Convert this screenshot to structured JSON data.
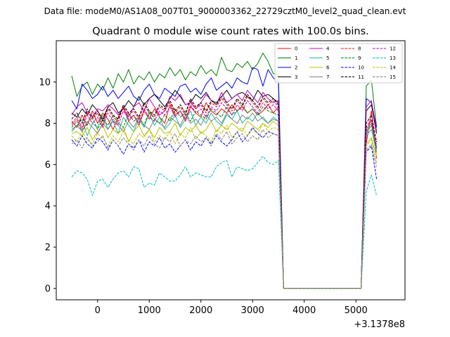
{
  "chart_data": {
    "type": "line",
    "suptitle": "Data file: modeM0/AS1A08_007T01_9000003362_22729cztM0_level2_quad_clean.evt",
    "title": "Quadrant 0 module wise count rates with 100.0s bins.",
    "xlabel": "",
    "ylabel": "",
    "x_offset_label": "+3.1378e8",
    "xlim": [
      -800,
      5950
    ],
    "ylim": [
      -0.55,
      12.0
    ],
    "x_ticks": [
      0,
      1000,
      2000,
      3000,
      4000,
      5000
    ],
    "y_ticks": [
      0,
      2,
      4,
      6,
      8,
      10
    ],
    "legend_position": "top-right",
    "x_start": -500,
    "x_step": 100,
    "series": [
      {
        "name": "0",
        "color": "#ff0000",
        "dash": "solid",
        "values": [
          8.1,
          7.8,
          8.4,
          7.9,
          8.6,
          8.0,
          8.5,
          8.2,
          7.7,
          8.3,
          8.8,
          8.1,
          8.4,
          7.9,
          8.6,
          8.2,
          8.7,
          8.3,
          8.0,
          8.9,
          8.4,
          8.6,
          8.1,
          8.8,
          8.5,
          8.3,
          9.0,
          8.6,
          8.4,
          8.7,
          8.5,
          8.9,
          8.6,
          8.8,
          8.5,
          8.7,
          8.4,
          8.6,
          8.9,
          8.5,
          8.8,
          0.0,
          0.0,
          0.0,
          0.0,
          0.0,
          0.0,
          0.0,
          0.0,
          0.0,
          0.0,
          0.0,
          0.0,
          0.0,
          0.0,
          0.0,
          0.0,
          7.0,
          8.6,
          6.3
        ]
      },
      {
        "name": "1",
        "color": "#008000",
        "dash": "solid",
        "values": [
          10.3,
          9.3,
          9.8,
          10.0,
          9.4,
          9.9,
          9.6,
          10.2,
          9.7,
          10.4,
          10.0,
          10.6,
          9.9,
          10.3,
          10.1,
          10.5,
          10.0,
          10.4,
          10.2,
          10.7,
          10.3,
          10.6,
          10.1,
          10.5,
          10.3,
          10.8,
          10.4,
          10.6,
          10.3,
          11.2,
          10.6,
          10.5,
          10.9,
          10.7,
          11.0,
          10.6,
          10.9,
          11.4,
          11.0,
          10.4,
          10.4,
          0.0,
          0.0,
          0.0,
          0.0,
          0.0,
          0.0,
          0.0,
          0.0,
          0.0,
          0.0,
          0.0,
          0.0,
          0.0,
          0.0,
          0.0,
          0.0,
          9.8,
          10.1,
          7.8
        ]
      },
      {
        "name": "2",
        "color": "#0000ff",
        "dash": "solid",
        "values": [
          9.1,
          8.7,
          9.9,
          9.6,
          9.2,
          9.4,
          9.8,
          9.3,
          9.6,
          9.2,
          9.5,
          9.8,
          9.3,
          9.1,
          9.6,
          9.9,
          9.4,
          9.2,
          9.7,
          9.5,
          9.3,
          9.8,
          9.9,
          9.5,
          9.7,
          9.4,
          9.9,
          10.2,
          9.6,
          9.8,
          10.0,
          9.7,
          10.2,
          10.0,
          9.9,
          10.7,
          10.6,
          9.8,
          10.6,
          10.2,
          10.0,
          0.0,
          0.0,
          0.0,
          0.0,
          0.0,
          0.0,
          0.0,
          0.0,
          0.0,
          0.0,
          0.0,
          0.0,
          0.0,
          0.0,
          0.0,
          0.0,
          9.2,
          9.0,
          7.8
        ]
      },
      {
        "name": "3",
        "color": "#000000",
        "dash": "solid",
        "values": [
          8.5,
          8.3,
          8.7,
          8.4,
          8.9,
          8.6,
          8.2,
          8.8,
          9.0,
          8.5,
          8.7,
          9.1,
          8.8,
          9.3,
          8.9,
          9.2,
          9.4,
          9.1,
          8.8,
          9.2,
          9.6,
          9.3,
          8.9,
          9.0,
          9.4,
          9.2,
          9.5,
          9.1,
          9.0,
          9.3,
          9.6,
          9.2,
          9.4,
          9.5,
          9.3,
          9.1,
          9.6,
          9.3,
          9.4,
          9.2,
          9.0,
          0.0,
          0.0,
          0.0,
          0.0,
          0.0,
          0.0,
          0.0,
          0.0,
          0.0,
          0.0,
          0.0,
          0.0,
          0.0,
          0.0,
          0.0,
          0.0,
          8.6,
          8.9,
          7.5
        ]
      },
      {
        "name": "4",
        "color": "#bf00bf",
        "dash": "solid",
        "values": [
          8.4,
          8.8,
          9.0,
          8.5,
          8.3,
          8.7,
          8.6,
          8.9,
          8.7,
          8.4,
          8.7,
          8.3,
          8.8,
          9.0,
          8.6,
          9.2,
          8.8,
          8.4,
          8.6,
          9.3,
          9.1,
          9.4,
          8.9,
          9.0,
          8.7,
          9.0,
          9.4,
          9.1,
          8.9,
          9.5,
          9.0,
          9.2,
          9.4,
          9.1,
          9.6,
          9.3,
          9.0,
          9.5,
          9.2,
          9.0,
          9.1,
          0.0,
          0.0,
          0.0,
          0.0,
          0.0,
          0.0,
          0.0,
          0.0,
          0.0,
          0.0,
          0.0,
          0.0,
          0.0,
          0.0,
          0.0,
          0.0,
          8.8,
          9.1,
          7.6
        ]
      },
      {
        "name": "5",
        "color": "#1abc9c",
        "dash": "solid",
        "values": [
          7.6,
          7.9,
          8.2,
          7.4,
          8.0,
          7.8,
          8.4,
          7.7,
          8.1,
          7.5,
          8.3,
          7.9,
          7.6,
          8.2,
          7.8,
          8.5,
          7.9,
          8.3,
          7.7,
          8.0,
          8.4,
          7.8,
          8.2,
          8.6,
          7.9,
          8.3,
          8.0,
          8.5,
          8.1,
          7.9,
          8.4,
          8.2,
          8.6,
          8.0,
          8.3,
          8.1,
          8.5,
          8.2,
          8.0,
          8.3,
          8.1,
          0.0,
          0.0,
          0.0,
          0.0,
          0.0,
          0.0,
          0.0,
          0.0,
          0.0,
          0.0,
          0.0,
          0.0,
          0.0,
          0.0,
          0.0,
          0.0,
          7.4,
          7.7,
          6.6
        ]
      },
      {
        "name": "6",
        "color": "#bfbf00",
        "dash": "solid",
        "values": [
          7.5,
          7.6,
          7.4,
          7.8,
          7.2,
          7.6,
          7.9,
          7.3,
          7.7,
          7.5,
          7.8,
          7.1,
          7.6,
          7.9,
          7.4,
          7.7,
          7.3,
          7.8,
          7.5,
          7.6,
          8.0,
          7.4,
          7.8,
          7.6,
          7.9,
          7.5,
          7.7,
          8.1,
          7.6,
          7.9,
          7.7,
          8.0,
          7.8,
          7.6,
          8.1,
          7.9,
          7.7,
          8.0,
          7.8,
          8.1,
          7.9,
          0.0,
          0.0,
          0.0,
          0.0,
          0.0,
          0.0,
          0.0,
          0.0,
          0.0,
          0.0,
          0.0,
          0.0,
          0.0,
          0.0,
          0.0,
          0.0,
          7.0,
          7.3,
          6.4
        ]
      },
      {
        "name": "7",
        "color": "#808080",
        "dash": "solid",
        "values": [
          7.7,
          7.9,
          7.6,
          8.1,
          7.8,
          7.5,
          8.0,
          7.7,
          8.2,
          7.9,
          7.6,
          8.1,
          7.8,
          8.3,
          7.9,
          7.7,
          8.2,
          8.0,
          7.8,
          8.3,
          8.1,
          7.9,
          8.4,
          8.0,
          8.2,
          7.9,
          8.4,
          8.1,
          8.3,
          8.0,
          8.5,
          8.2,
          8.0,
          8.4,
          8.2,
          8.5,
          8.1,
          8.3,
          8.0,
          8.2,
          8.1,
          0.0,
          0.0,
          0.0,
          0.0,
          0.0,
          0.0,
          0.0,
          0.0,
          0.0,
          0.0,
          0.0,
          0.0,
          0.0,
          0.0,
          0.0,
          0.0,
          7.5,
          7.9,
          6.8
        ]
      },
      {
        "name": "8",
        "color": "#ff0000",
        "dash": "dashed",
        "values": [
          8.0,
          8.3,
          7.8,
          8.6,
          8.2,
          8.5,
          7.9,
          8.7,
          8.3,
          8.1,
          8.8,
          8.4,
          8.6,
          8.2,
          8.9,
          8.5,
          8.3,
          8.8,
          8.6,
          9.0,
          8.5,
          8.8,
          8.4,
          9.1,
          8.7,
          8.9,
          8.5,
          9.0,
          8.8,
          9.2,
          8.9,
          8.6,
          9.1,
          8.8,
          9.3,
          9.0,
          8.7,
          9.2,
          8.9,
          9.1,
          8.8,
          0.0,
          0.0,
          0.0,
          0.0,
          0.0,
          0.0,
          0.0,
          0.0,
          0.0,
          0.0,
          0.0,
          0.0,
          0.0,
          0.0,
          0.0,
          0.0,
          7.8,
          8.2,
          6.9
        ]
      },
      {
        "name": "9",
        "color": "#008000",
        "dash": "dashed",
        "values": [
          7.8,
          8.1,
          7.6,
          8.0,
          8.3,
          7.7,
          8.2,
          7.9,
          8.4,
          8.0,
          7.8,
          8.5,
          8.1,
          8.3,
          7.9,
          8.6,
          8.2,
          8.0,
          8.4,
          8.1,
          8.7,
          8.3,
          8.5,
          8.1,
          8.6,
          8.4,
          8.2,
          8.7,
          8.5,
          8.3,
          8.8,
          8.4,
          8.6,
          8.9,
          8.5,
          8.7,
          8.4,
          8.8,
          8.6,
          8.5,
          8.4,
          0.0,
          0.0,
          0.0,
          0.0,
          0.0,
          0.0,
          0.0,
          0.0,
          0.0,
          0.0,
          0.0,
          0.0,
          0.0,
          0.0,
          0.0,
          0.0,
          7.6,
          8.0,
          6.7
        ]
      },
      {
        "name": "10",
        "color": "#0000ff",
        "dash": "dashed",
        "values": [
          7.2,
          6.9,
          7.4,
          7.0,
          6.8,
          7.3,
          7.1,
          6.7,
          7.2,
          6.9,
          6.5,
          7.0,
          6.8,
          7.2,
          6.6,
          7.1,
          6.9,
          7.3,
          6.8,
          7.0,
          6.6,
          6.9,
          7.2,
          6.7,
          7.1,
          6.9,
          7.3,
          7.0,
          7.4,
          7.1,
          6.9,
          7.2,
          7.6,
          7.1,
          7.4,
          7.8,
          7.5,
          7.3,
          7.6,
          7.5,
          7.4,
          0.0,
          0.0,
          0.0,
          0.0,
          0.0,
          0.0,
          0.0,
          0.0,
          0.0,
          0.0,
          0.0,
          0.0,
          0.0,
          0.0,
          0.0,
          0.0,
          6.6,
          6.9,
          5.3
        ]
      },
      {
        "name": "11",
        "color": "#000000",
        "dash": "dashed",
        "values": [
          8.2,
          8.5,
          8.0,
          8.7,
          8.3,
          8.6,
          8.1,
          8.8,
          8.4,
          8.2,
          8.9,
          8.5,
          8.7,
          8.3,
          9.0,
          8.6,
          8.4,
          8.9,
          8.7,
          9.1,
          8.6,
          8.9,
          8.5,
          9.2,
          8.8,
          9.0,
          8.6,
          9.1,
          8.9,
          9.3,
          9.0,
          8.7,
          9.2,
          8.9,
          9.4,
          9.1,
          8.8,
          9.3,
          9.0,
          9.2,
          8.9,
          0.0,
          0.0,
          0.0,
          0.0,
          0.0,
          0.0,
          0.0,
          0.0,
          0.0,
          0.0,
          0.0,
          0.0,
          0.0,
          0.0,
          0.0,
          0.0,
          8.0,
          8.4,
          7.1
        ]
      },
      {
        "name": "12",
        "color": "#bf00bf",
        "dash": "dashed",
        "values": [
          7.9,
          8.2,
          7.7,
          8.4,
          8.0,
          8.3,
          7.8,
          8.5,
          8.1,
          7.9,
          8.6,
          8.2,
          8.4,
          8.0,
          8.7,
          8.3,
          8.1,
          8.6,
          8.4,
          8.8,
          8.3,
          8.6,
          8.2,
          8.9,
          8.5,
          8.7,
          8.3,
          8.8,
          8.6,
          9.0,
          8.7,
          8.4,
          8.9,
          8.6,
          9.1,
          8.8,
          8.5,
          9.0,
          8.7,
          8.9,
          8.6,
          0.0,
          0.0,
          0.0,
          0.0,
          0.0,
          0.0,
          0.0,
          0.0,
          0.0,
          0.0,
          0.0,
          0.0,
          0.0,
          0.0,
          0.0,
          0.0,
          7.7,
          8.1,
          6.8
        ]
      },
      {
        "name": "13",
        "color": "#00bfbf",
        "dash": "dashed",
        "values": [
          5.4,
          5.7,
          5.6,
          5.3,
          4.5,
          5.2,
          5.3,
          4.9,
          5.3,
          5.6,
          5.7,
          5.4,
          5.9,
          5.8,
          4.9,
          5.1,
          5.0,
          5.6,
          5.4,
          5.2,
          5.2,
          5.5,
          5.9,
          5.4,
          5.6,
          5.5,
          5.4,
          5.4,
          5.9,
          6.1,
          6.2,
          5.4,
          5.9,
          5.8,
          5.7,
          5.8,
          6.1,
          6.4,
          6.1,
          6.0,
          6.2,
          0.0,
          0.0,
          0.0,
          0.0,
          0.0,
          0.0,
          0.0,
          0.0,
          0.0,
          0.0,
          0.0,
          0.0,
          0.0,
          0.0,
          0.0,
          0.0,
          4.7,
          5.5,
          4.5
        ]
      },
      {
        "name": "14",
        "color": "#bfbf00",
        "dash": "dashed",
        "values": [
          7.4,
          7.1,
          7.6,
          7.2,
          7.0,
          7.5,
          7.3,
          6.9,
          7.4,
          7.1,
          7.6,
          7.2,
          7.0,
          7.5,
          7.3,
          7.7,
          7.1,
          7.4,
          7.2,
          7.6,
          7.0,
          7.5,
          7.3,
          7.8,
          7.2,
          7.6,
          7.4,
          7.1,
          7.7,
          7.5,
          7.9,
          7.3,
          7.6,
          7.8,
          7.4,
          7.7,
          7.5,
          8.0,
          7.6,
          7.8,
          7.7,
          0.0,
          0.0,
          0.0,
          0.0,
          0.0,
          0.0,
          0.0,
          0.0,
          0.0,
          0.0,
          0.0,
          0.0,
          0.0,
          0.0,
          0.0,
          0.0,
          6.9,
          7.2,
          6.1
        ]
      },
      {
        "name": "15",
        "color": "#808080",
        "dash": "dashed",
        "values": [
          7.0,
          7.2,
          6.8,
          7.3,
          6.9,
          7.1,
          7.4,
          6.8,
          7.2,
          6.9,
          7.3,
          7.0,
          6.7,
          7.2,
          6.9,
          7.4,
          7.0,
          6.8,
          7.3,
          7.1,
          7.5,
          6.9,
          7.2,
          7.0,
          7.4,
          7.1,
          7.3,
          6.9,
          7.5,
          7.2,
          7.6,
          7.0,
          7.3,
          7.5,
          7.1,
          7.4,
          7.2,
          7.7,
          7.3,
          7.5,
          7.4,
          0.0,
          0.0,
          0.0,
          0.0,
          0.0,
          0.0,
          0.0,
          0.0,
          0.0,
          0.0,
          0.0,
          0.0,
          0.0,
          0.0,
          0.0,
          0.0,
          6.7,
          7.0,
          5.9
        ]
      }
    ]
  }
}
